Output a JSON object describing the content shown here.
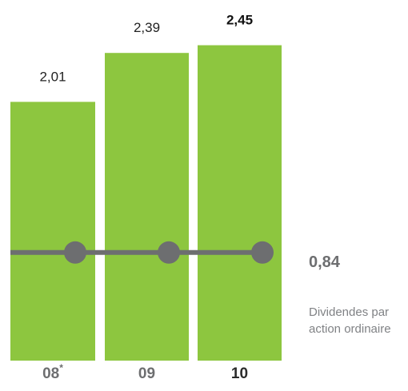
{
  "chart_data": {
    "type": "bar",
    "categories": [
      "08",
      "09",
      "10"
    ],
    "category_marks": [
      "*",
      "",
      ""
    ],
    "highlight_category": "10",
    "ylim": [
      0,
      2.8
    ],
    "series": [
      {
        "type": "bar",
        "values": [
          2.01,
          2.39,
          2.45
        ],
        "value_labels": [
          "2,01",
          "2,39",
          "2,45"
        ],
        "color": "#8dc63f"
      },
      {
        "type": "line",
        "values": [
          0.84,
          0.84,
          0.84
        ],
        "value_label": "0,84",
        "label_lines": [
          "Dividendes par",
          "action ordinaire"
        ],
        "color": "#6d6e70",
        "marker": "circle"
      }
    ]
  }
}
